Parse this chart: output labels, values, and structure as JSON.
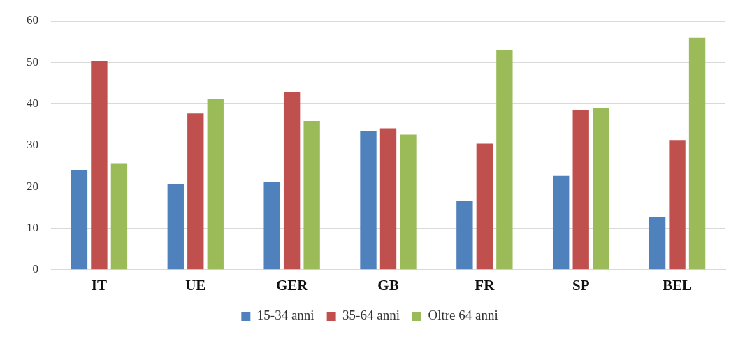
{
  "chart_data": {
    "type": "bar",
    "categories": [
      "IT",
      "UE",
      "GER",
      "GB",
      "FR",
      "SP",
      "BEL"
    ],
    "series": [
      {
        "name": "15-34 anni",
        "color": "#4f81bd",
        "values": [
          24.1,
          20.7,
          21.2,
          33.5,
          16.5,
          22.6,
          12.7
        ]
      },
      {
        "name": "35-64 anni",
        "color": "#c0504d",
        "values": [
          50.4,
          37.7,
          42.8,
          34.1,
          30.4,
          38.4,
          31.3
        ]
      },
      {
        "name": "Oltre 64 anni",
        "color": "#9bbb59",
        "values": [
          25.7,
          41.3,
          35.9,
          32.6,
          52.9,
          38.9,
          56.0
        ]
      }
    ],
    "ylim": [
      0,
      60
    ],
    "yticks": [
      0,
      10,
      20,
      30,
      40,
      50,
      60
    ],
    "grid": "y",
    "legend": "bottom"
  }
}
